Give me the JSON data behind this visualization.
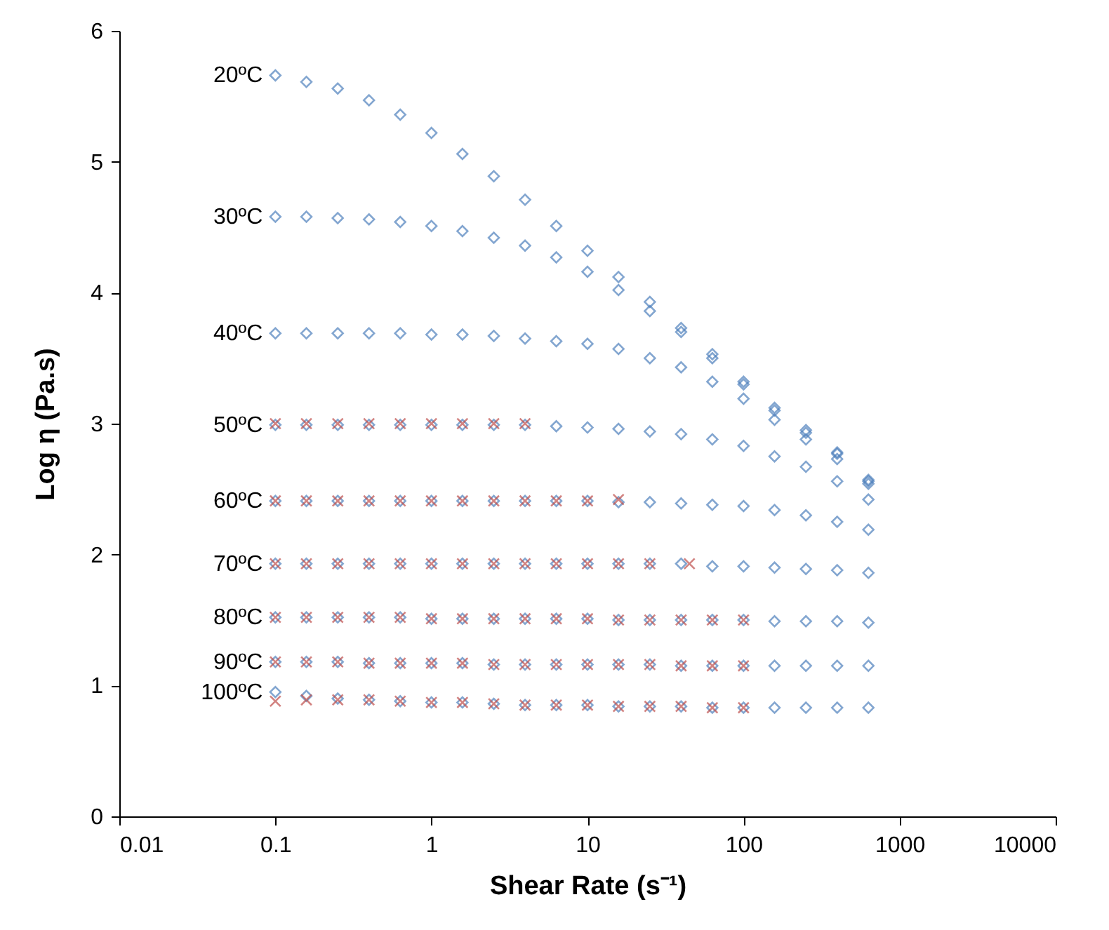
{
  "chart_data": {
    "type": "scatter",
    "xlabel": "Shear Rate (s⁻¹)",
    "ylabel": "Log η (Pa.s)",
    "x": [
      0.1,
      0.158,
      0.251,
      0.398,
      0.631,
      1,
      1.58,
      2.51,
      3.98,
      6.31,
      10,
      15.8,
      25.1,
      39.8,
      63.1,
      100,
      158,
      251,
      398,
      631
    ],
    "series": [
      {
        "name": "20ºC",
        "color": "#4f81bd",
        "marker": "diamond",
        "values": [
          5.66,
          5.61,
          5.56,
          5.47,
          5.36,
          5.22,
          5.06,
          4.89,
          4.71,
          4.51,
          4.32,
          4.12,
          3.93,
          3.73,
          3.53,
          3.32,
          3.12,
          2.95,
          2.78,
          2.57
        ]
      },
      {
        "name": "30ºC",
        "color": "#4f81bd",
        "marker": "diamond",
        "values": [
          4.58,
          4.58,
          4.57,
          4.56,
          4.54,
          4.51,
          4.47,
          4.42,
          4.36,
          4.27,
          4.16,
          4.02,
          3.86,
          3.7,
          3.5,
          3.3,
          3.1,
          2.93,
          2.77,
          2.56
        ]
      },
      {
        "name": "40ºC",
        "color": "#4f81bd",
        "marker": "diamond",
        "values": [
          3.69,
          3.69,
          3.69,
          3.69,
          3.69,
          3.68,
          3.68,
          3.67,
          3.65,
          3.63,
          3.61,
          3.57,
          3.5,
          3.43,
          3.32,
          3.19,
          3.03,
          2.88,
          2.73,
          2.54
        ]
      },
      {
        "name": "50ºC",
        "color": "#4f81bd",
        "marker": "diamond",
        "values": [
          2.99,
          2.99,
          2.99,
          2.99,
          2.99,
          2.99,
          2.99,
          2.99,
          2.99,
          2.98,
          2.97,
          2.96,
          2.94,
          2.92,
          2.88,
          2.83,
          2.75,
          2.67,
          2.56,
          2.42
        ]
      },
      {
        "name": "60ºC",
        "color": "#4f81bd",
        "marker": "diamond",
        "values": [
          2.41,
          2.41,
          2.41,
          2.41,
          2.41,
          2.41,
          2.41,
          2.41,
          2.41,
          2.41,
          2.41,
          2.4,
          2.4,
          2.39,
          2.38,
          2.37,
          2.34,
          2.3,
          2.25,
          2.19
        ]
      },
      {
        "name": "70ºC",
        "color": "#4f81bd",
        "marker": "diamond",
        "values": [
          1.93,
          1.93,
          1.93,
          1.93,
          1.93,
          1.93,
          1.93,
          1.93,
          1.93,
          1.93,
          1.93,
          1.93,
          1.93,
          1.93,
          1.91,
          1.91,
          1.9,
          1.89,
          1.88,
          1.86
        ]
      },
      {
        "name": "80ºC",
        "color": "#4f81bd",
        "marker": "diamond",
        "values": [
          1.52,
          1.52,
          1.52,
          1.52,
          1.52,
          1.51,
          1.51,
          1.51,
          1.51,
          1.51,
          1.51,
          1.5,
          1.5,
          1.5,
          1.5,
          1.5,
          1.49,
          1.49,
          1.49,
          1.48
        ]
      },
      {
        "name": "90ºC",
        "color": "#4f81bd",
        "marker": "diamond",
        "values": [
          1.18,
          1.18,
          1.18,
          1.17,
          1.17,
          1.17,
          1.17,
          1.16,
          1.16,
          1.16,
          1.16,
          1.16,
          1.16,
          1.15,
          1.15,
          1.15,
          1.15,
          1.15,
          1.15,
          1.15
        ]
      },
      {
        "name": "100ºC",
        "color": "#4f81bd",
        "marker": "diamond",
        "values": [
          0.95,
          0.92,
          0.9,
          0.89,
          0.88,
          0.87,
          0.87,
          0.86,
          0.85,
          0.85,
          0.85,
          0.84,
          0.84,
          0.84,
          0.83,
          0.83,
          0.83,
          0.83,
          0.83,
          0.83
        ]
      },
      {
        "color": "#c0504d",
        "marker": "cross",
        "x": [
          0.1,
          0.158,
          0.251,
          0.398,
          0.631,
          1,
          1.58,
          2.51,
          3.98
        ],
        "values": [
          3.0,
          3.0,
          3.0,
          3.0,
          3.0,
          3.0,
          3.0,
          3.0,
          3.0
        ]
      },
      {
        "color": "#c0504d",
        "marker": "cross",
        "x": [
          0.1,
          0.158,
          0.251,
          0.398,
          0.631,
          1,
          1.58,
          2.51,
          3.98,
          6.31,
          10,
          15.8
        ],
        "values": [
          2.41,
          2.41,
          2.41,
          2.41,
          2.41,
          2.41,
          2.41,
          2.41,
          2.41,
          2.41,
          2.41,
          2.42
        ]
      },
      {
        "color": "#c0504d",
        "marker": "cross",
        "x": [
          0.1,
          0.158,
          0.251,
          0.398,
          0.631,
          1,
          1.58,
          2.51,
          3.98,
          6.31,
          10,
          15.8,
          25.1,
          45
        ],
        "values": [
          1.93,
          1.93,
          1.93,
          1.93,
          1.93,
          1.93,
          1.93,
          1.93,
          1.93,
          1.93,
          1.93,
          1.93,
          1.93,
          1.93
        ]
      },
      {
        "color": "#c0504d",
        "marker": "cross",
        "x": [
          0.1,
          0.158,
          0.251,
          0.398,
          0.631,
          1,
          1.58,
          2.51,
          3.98,
          6.31,
          10,
          15.8,
          25.1,
          39.8,
          63.1,
          100
        ],
        "values": [
          1.52,
          1.52,
          1.52,
          1.52,
          1.52,
          1.51,
          1.51,
          1.51,
          1.51,
          1.51,
          1.51,
          1.5,
          1.5,
          1.5,
          1.5,
          1.5
        ]
      },
      {
        "color": "#c0504d",
        "marker": "cross",
        "x": [
          0.1,
          0.158,
          0.251,
          0.398,
          0.631,
          1,
          1.58,
          2.51,
          3.98,
          6.31,
          10,
          15.8,
          25.1,
          39.8,
          63.1,
          100
        ],
        "values": [
          1.18,
          1.18,
          1.18,
          1.17,
          1.17,
          1.17,
          1.17,
          1.16,
          1.16,
          1.16,
          1.16,
          1.16,
          1.16,
          1.15,
          1.15,
          1.15
        ]
      },
      {
        "color": "#c0504d",
        "marker": "cross",
        "x": [
          0.1,
          0.158,
          0.251,
          0.398,
          0.631,
          1,
          1.58,
          2.51,
          3.98,
          6.31,
          10,
          15.8,
          25.1,
          39.8,
          63.1,
          100
        ],
        "values": [
          0.88,
          0.89,
          0.89,
          0.89,
          0.88,
          0.87,
          0.87,
          0.86,
          0.85,
          0.85,
          0.85,
          0.84,
          0.84,
          0.84,
          0.83,
          0.83
        ]
      }
    ],
    "xlim": [
      0.01,
      10000
    ],
    "xticks": [
      0.01,
      0.1,
      1,
      10,
      100,
      1000,
      10000
    ],
    "ylim": [
      0,
      6
    ],
    "yticks": [
      0,
      1,
      2,
      3,
      4,
      5,
      6
    ],
    "log": "x",
    "grid": false,
    "legend": false
  }
}
